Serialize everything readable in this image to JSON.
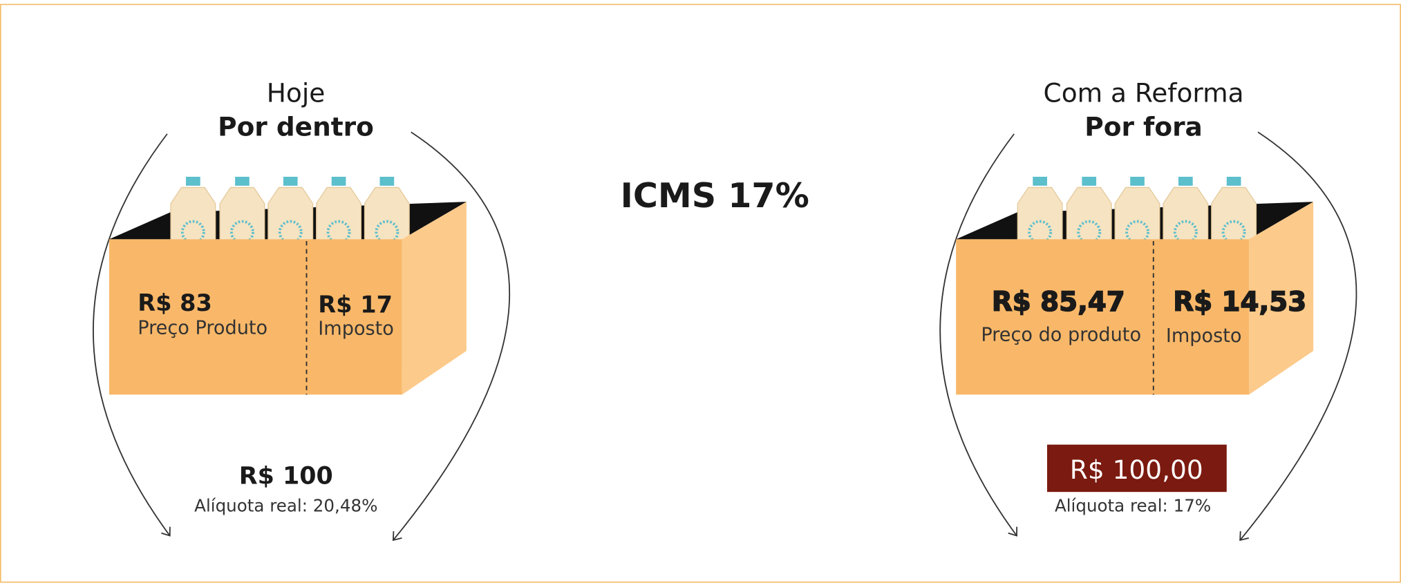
{
  "center_title": "ICMS 17%",
  "panels": [
    {
      "title": "Hoje",
      "subtitle": "Por dentro",
      "price_value": "R$ 83",
      "price_label": "Preço Produto",
      "tax_value": "R$ 17",
      "tax_label": "Imposto",
      "total": "R$ 100",
      "rate": "Alíquota real: 20,48%"
    },
    {
      "title": "Com a Reforma",
      "subtitle": "Por fora",
      "price_value": "R$ 85,47",
      "price_label": "Preço do produto",
      "tax_value": "R$ 14,53",
      "tax_label": "Imposto",
      "total": "R$ 100,00",
      "rate": "Alíquota real: 17%"
    }
  ]
}
